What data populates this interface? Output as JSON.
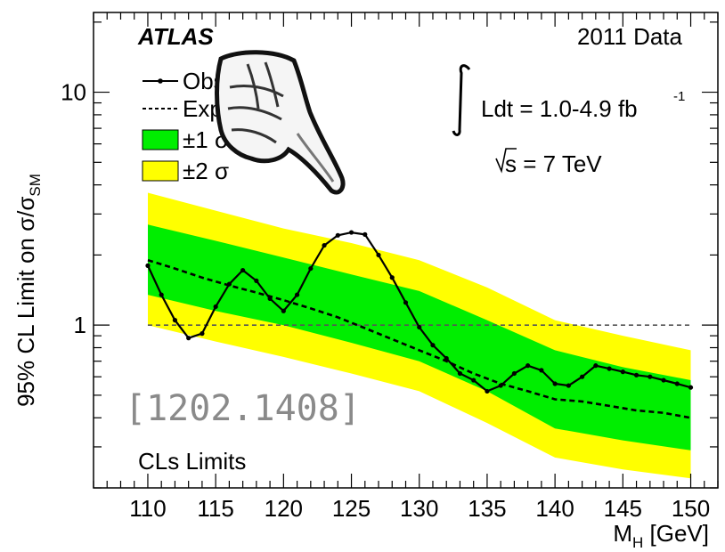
{
  "chart_data": {
    "type": "line",
    "title": "",
    "xlabel": "M",
    "xlabel_sub": "H",
    "xlabel_unit": " [GeV]",
    "ylabel": "95% CL Limit on σ/σ",
    "ylabel_sub": "SM",
    "xlim": [
      106,
      152
    ],
    "ylim": [
      0.2,
      22
    ],
    "y_scale": "log",
    "x_ticks": [
      110,
      115,
      120,
      125,
      130,
      135,
      140,
      145,
      150
    ],
    "y_ticks": [
      {
        "value": 1,
        "label": "1"
      },
      {
        "value": 10,
        "label": "10"
      }
    ],
    "reference_line": {
      "value": 1,
      "style": "dashed",
      "color": "#555555"
    },
    "colors": {
      "band_1sigma": "#00ee00",
      "band_2sigma": "#ffff00",
      "observed": "#000000",
      "expected": "#000000"
    },
    "legend": {
      "placement": "top-left",
      "entries": [
        {
          "label": "Observed",
          "style": "line-marker"
        },
        {
          "label": "Expected",
          "style": "dashed"
        },
        {
          "label": "±1 σ",
          "style": "green-box"
        },
        {
          "label": "±2 σ",
          "style": "yellow-box"
        }
      ]
    },
    "annotations": {
      "experiment": "ATLAS",
      "dataset": "2011 Data",
      "lumi_prefix": "Ldt = 1.0-4.9 fb",
      "lumi_exp": "-1",
      "energy": "s = 7 TeV",
      "method": "CLs Limits",
      "overlay_text": "[1202.1408]"
    },
    "observed": {
      "x": [
        110,
        111,
        112,
        113,
        114,
        115,
        116,
        117,
        118,
        119,
        120,
        121,
        122,
        123,
        124,
        125,
        126,
        127,
        128,
        129,
        130,
        131,
        132,
        133,
        134,
        135,
        136,
        137,
        138,
        139,
        140,
        141,
        142,
        143,
        144,
        145,
        146,
        147,
        148,
        149,
        150
      ],
      "y": [
        1.8,
        1.35,
        1.05,
        0.88,
        0.92,
        1.2,
        1.5,
        1.72,
        1.55,
        1.3,
        1.15,
        1.35,
        1.75,
        2.2,
        2.43,
        2.5,
        2.45,
        2.0,
        1.6,
        1.25,
        0.98,
        0.82,
        0.72,
        0.62,
        0.58,
        0.52,
        0.55,
        0.62,
        0.67,
        0.64,
        0.56,
        0.55,
        0.6,
        0.67,
        0.65,
        0.63,
        0.61,
        0.6,
        0.58,
        0.56,
        0.54
      ]
    },
    "expected": {
      "x": [
        110,
        112,
        114,
        116,
        118,
        120,
        122,
        124,
        126,
        128,
        130,
        132,
        134,
        136,
        138,
        140,
        142,
        144,
        146,
        148,
        150
      ],
      "y": [
        1.9,
        1.75,
        1.6,
        1.48,
        1.38,
        1.28,
        1.18,
        1.08,
        0.97,
        0.87,
        0.78,
        0.7,
        0.62,
        0.56,
        0.52,
        0.48,
        0.47,
        0.45,
        0.43,
        0.42,
        0.4
      ]
    },
    "band_1sigma": {
      "x": [
        110,
        115,
        120,
        125,
        130,
        135,
        140,
        145,
        150
      ],
      "upper": [
        2.7,
        2.3,
        1.95,
        1.65,
        1.4,
        1.05,
        0.78,
        0.66,
        0.58
      ],
      "lower": [
        1.35,
        1.15,
        1.0,
        0.84,
        0.7,
        0.52,
        0.36,
        0.32,
        0.29
      ]
    },
    "band_2sigma": {
      "x": [
        110,
        115,
        120,
        125,
        130,
        135,
        140,
        145,
        150
      ],
      "upper": [
        3.7,
        3.1,
        2.6,
        2.25,
        1.9,
        1.45,
        1.05,
        0.9,
        0.78
      ],
      "lower": [
        1.0,
        0.85,
        0.73,
        0.62,
        0.52,
        0.38,
        0.27,
        0.24,
        0.22
      ]
    }
  }
}
